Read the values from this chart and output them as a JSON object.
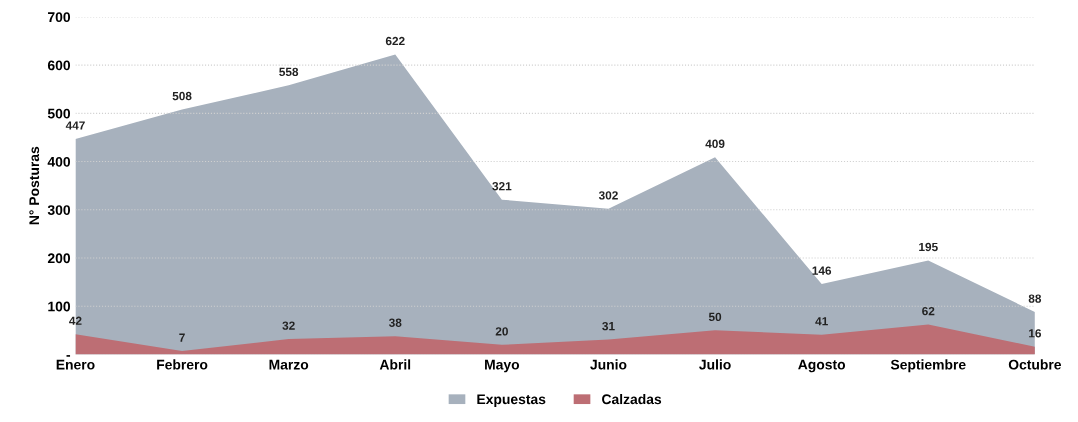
{
  "chart_data": {
    "type": "area",
    "ylabel": "N° Posturas",
    "categories": [
      "Enero",
      "Febrero",
      "Marzo",
      "Abril",
      "Mayo",
      "Junio",
      "Julio",
      "Agosto",
      "Septiembre",
      "Octubre"
    ],
    "series": [
      {
        "name": "Expuestas",
        "color": "#a7b1bd",
        "values": [
          447,
          508,
          558,
          622,
          321,
          302,
          409,
          146,
          195,
          88
        ]
      },
      {
        "name": "Calzadas",
        "color": "#bd6e74",
        "values": [
          42,
          7,
          32,
          38,
          20,
          31,
          50,
          41,
          62,
          16
        ]
      }
    ],
    "ylim": [
      0,
      700
    ],
    "yticks": [
      {
        "value": 0,
        "label": "-"
      },
      100,
      200,
      300,
      400,
      500,
      600,
      700
    ],
    "grid": "y",
    "legend": "bottom",
    "data_labels": true
  }
}
